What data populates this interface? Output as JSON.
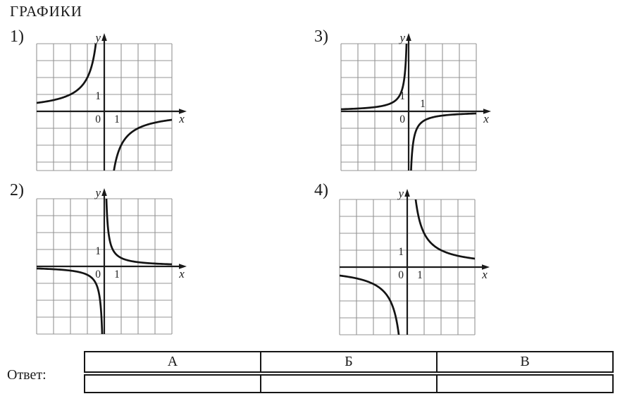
{
  "title": "ГРАФИКИ",
  "axes": {
    "x_label": "x",
    "y_label": "y",
    "origin_label": "0",
    "x_unit_label": "1",
    "y_unit_label": "1"
  },
  "panels": [
    {
      "label": "1)"
    },
    {
      "label": "2)"
    },
    {
      "label": "3)"
    },
    {
      "label": "4)"
    }
  ],
  "answer": {
    "label": "Ответ:",
    "columns": [
      "А",
      "Б",
      "В"
    ],
    "values": [
      "",
      "",
      ""
    ]
  },
  "chart_data": [
    {
      "type": "line",
      "panel": "1)",
      "function": "y = k/x",
      "k": -2,
      "branch_quadrants": [
        "II",
        "IV"
      ],
      "xlim": [
        -4,
        4
      ],
      "ylim": [
        -3.5,
        4
      ],
      "grid": true,
      "asymptotes": [
        "x = 0",
        "y = 0"
      ],
      "points_x": [
        -4,
        -2,
        -1,
        -0.5,
        0.5,
        1,
        2,
        4
      ],
      "points_y": [
        0.5,
        1,
        2,
        4,
        -4,
        -2,
        -1,
        -0.5
      ],
      "tick_labels": {
        "x": [
          "0",
          "1"
        ],
        "y": [
          "1"
        ]
      },
      "x_tick_above_axis": false
    },
    {
      "type": "line",
      "panel": "2)",
      "function": "y = k/x",
      "k": 0.5,
      "branch_quadrants": [
        "I",
        "III"
      ],
      "xlim": [
        -4,
        4
      ],
      "ylim": [
        -4,
        4
      ],
      "grid": true,
      "asymptotes": [
        "x = 0",
        "y = 0"
      ],
      "points_x": [
        -4,
        -1,
        -0.5,
        -0.125,
        0.125,
        0.5,
        1,
        4
      ],
      "points_y": [
        -0.125,
        -0.5,
        -1,
        -4,
        4,
        1,
        0.5,
        0.125
      ],
      "tick_labels": {
        "x": [
          "0",
          "1"
        ],
        "y": [
          "1"
        ]
      },
      "x_tick_above_axis": false
    },
    {
      "type": "line",
      "panel": "3)",
      "function": "y = k/x",
      "k": -0.5,
      "branch_quadrants": [
        "II",
        "IV"
      ],
      "xlim": [
        -4,
        4
      ],
      "ylim": [
        -3.5,
        4
      ],
      "grid": true,
      "asymptotes": [
        "x = 0",
        "y = 0"
      ],
      "points_x": [
        -4,
        -1,
        -0.5,
        -0.125,
        0.125,
        0.5,
        1,
        4
      ],
      "points_y": [
        0.125,
        0.5,
        1,
        4,
        -4,
        -1,
        -0.5,
        -0.125
      ],
      "tick_labels": {
        "x": [
          "0",
          "1"
        ],
        "y": [
          "1"
        ]
      },
      "x_tick_above_axis": true
    },
    {
      "type": "line",
      "panel": "4)",
      "function": "y = k/x",
      "k": 2,
      "branch_quadrants": [
        "I",
        "III"
      ],
      "xlim": [
        -4,
        4
      ],
      "ylim": [
        -4,
        4
      ],
      "grid": true,
      "asymptotes": [
        "x = 0",
        "y = 0"
      ],
      "points_x": [
        -4,
        -2,
        -1,
        -0.5,
        0.5,
        1,
        2,
        4
      ],
      "points_y": [
        -0.5,
        -1,
        -2,
        -4,
        4,
        2,
        1,
        0.5
      ],
      "tick_labels": {
        "x": [
          "0",
          "1"
        ],
        "y": [
          "1"
        ]
      },
      "x_tick_above_axis": false
    }
  ]
}
